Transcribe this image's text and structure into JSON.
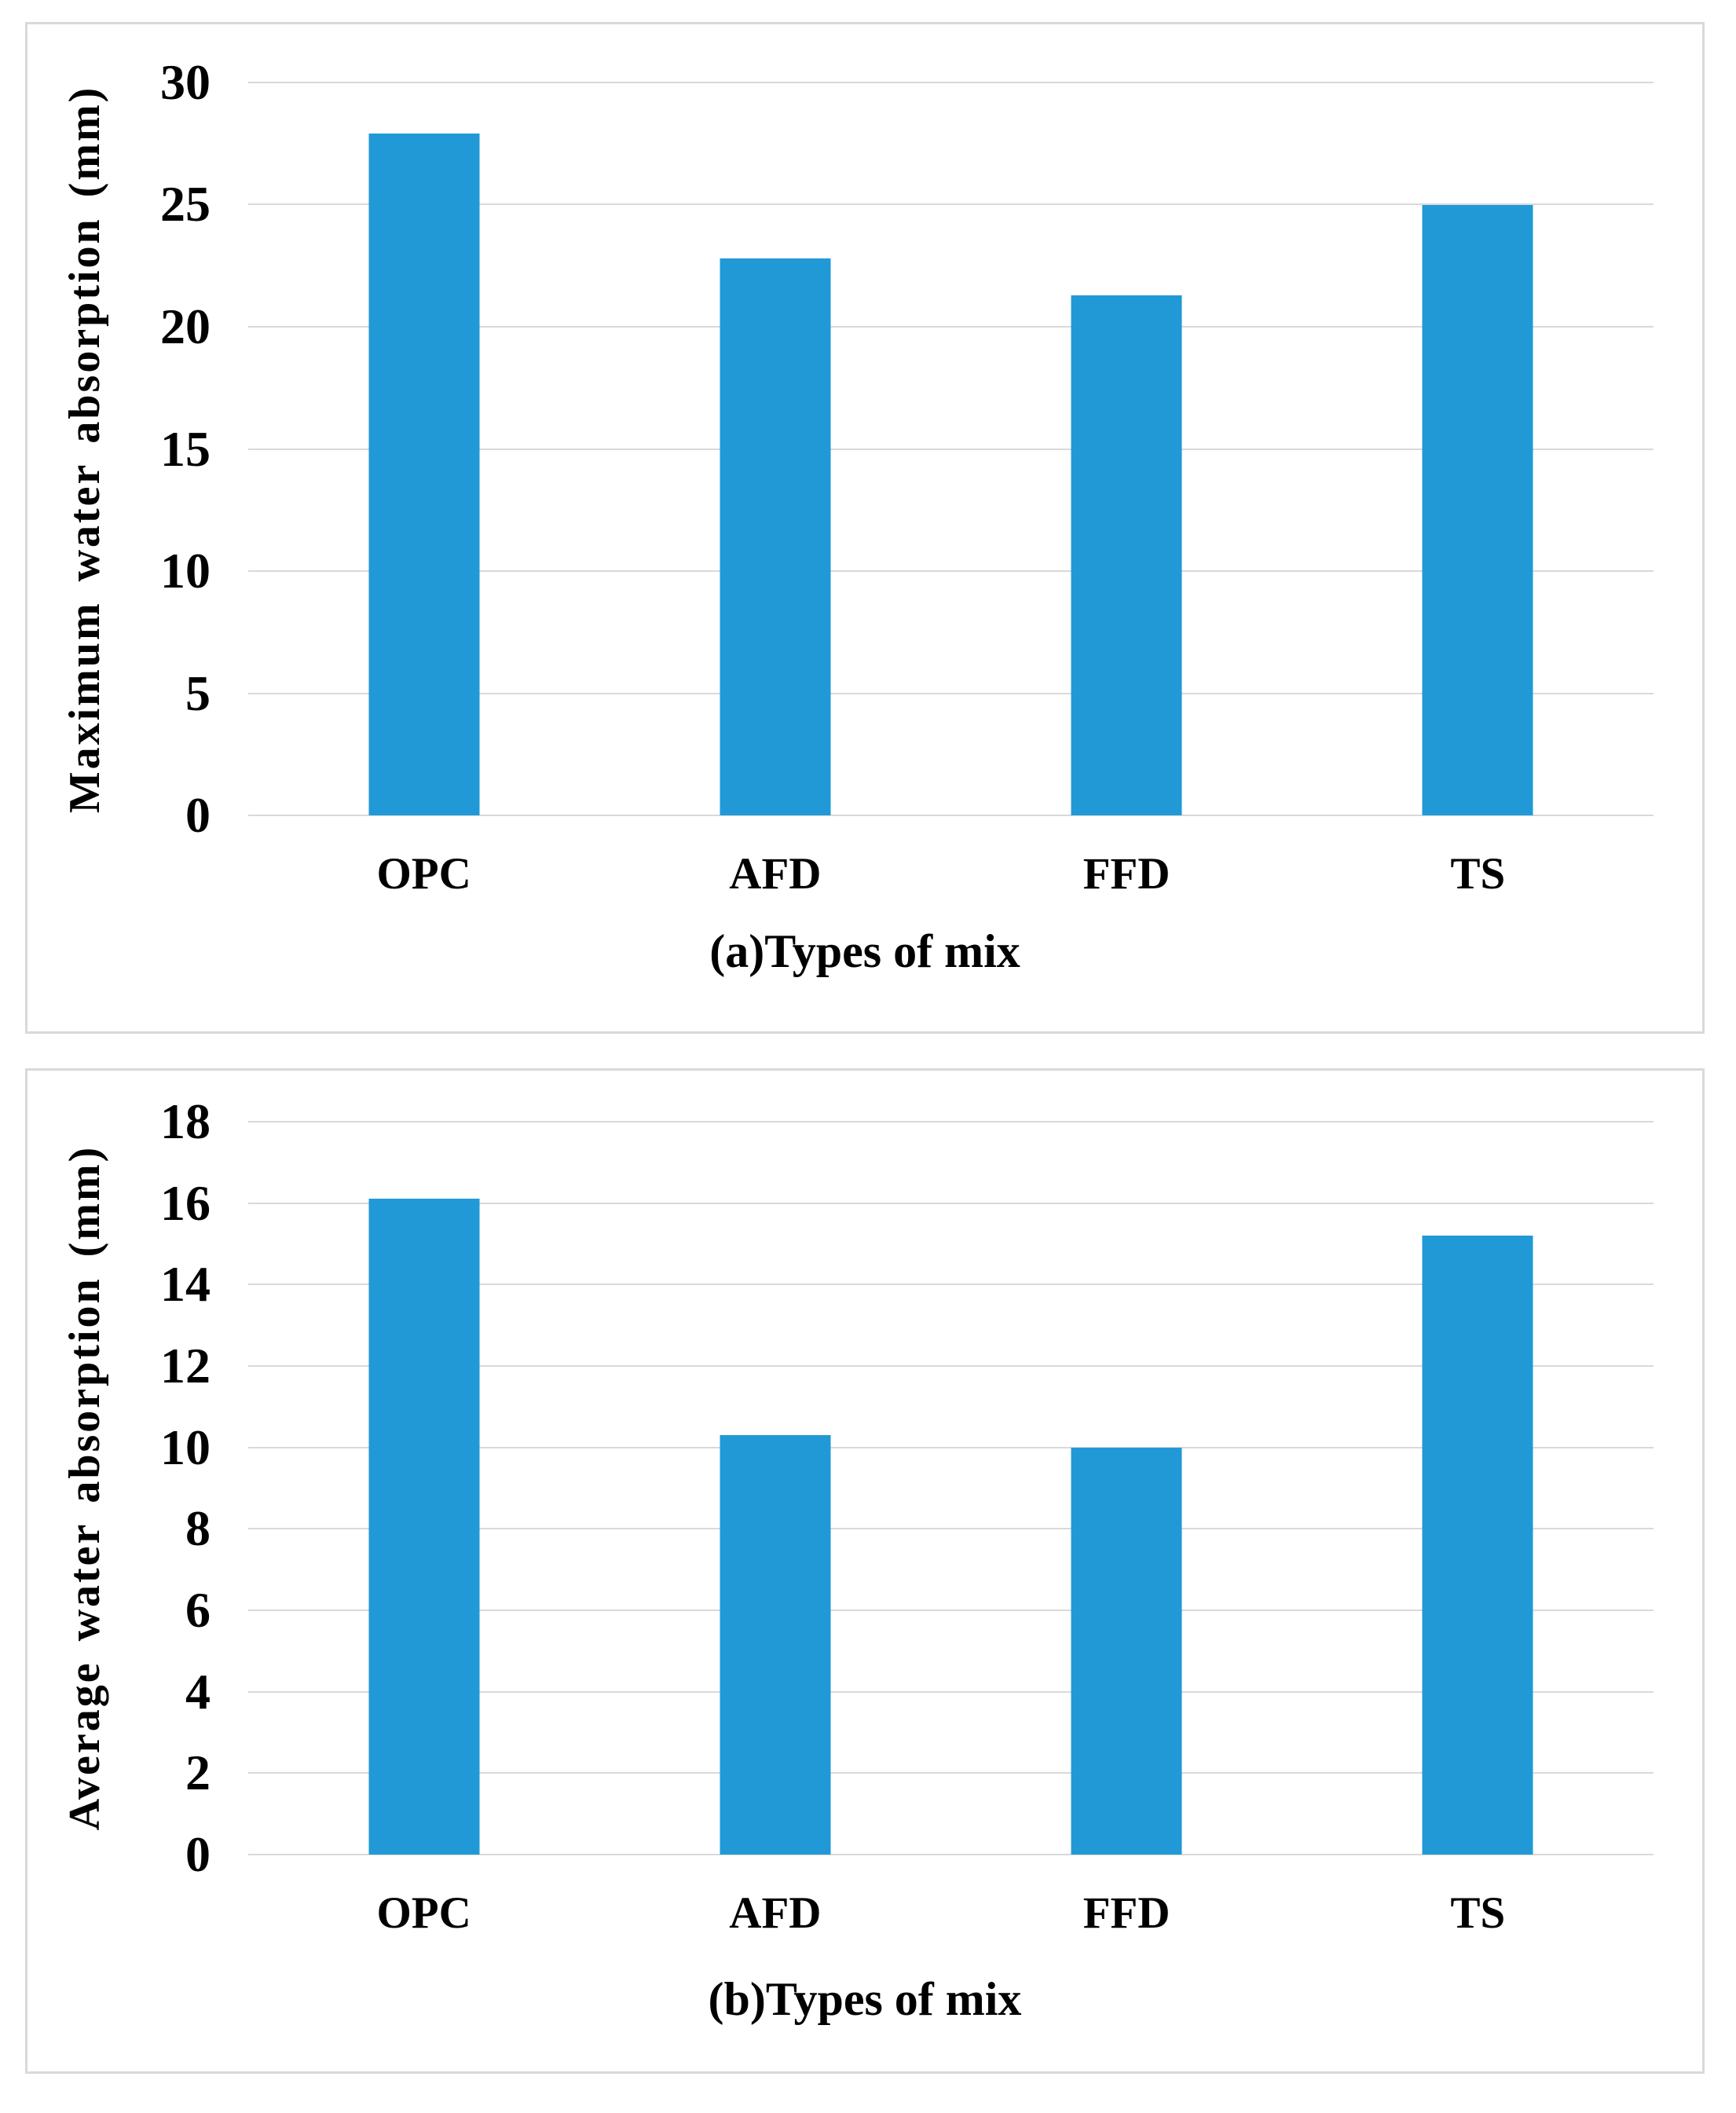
{
  "figure": {
    "background": "#ffffff",
    "border_color": "#d9d9d9",
    "gridline_color": "#d9d9d9",
    "bar_color": "#2199d6",
    "text_color": "#000000"
  },
  "chart_data": [
    {
      "type": "bar",
      "panel": "a",
      "caption": "(a)Types of mix",
      "ylabel": "Maximum water absorption (mm)",
      "xlabel": "Types of mix",
      "categories": [
        "OPC",
        "AFD",
        "FFD",
        "TS"
      ],
      "values": [
        27.9,
        22.8,
        21.3,
        25.0
      ],
      "ylim": [
        0,
        30
      ],
      "ytick_step": 5,
      "yticks": [
        0,
        5,
        10,
        15,
        20,
        25,
        30
      ],
      "grid": true,
      "legend_position": "none"
    },
    {
      "type": "bar",
      "panel": "b",
      "caption": "(b)Types of mix",
      "ylabel": "Average water absorption (mm)",
      "xlabel": "Types of mix",
      "categories": [
        "OPC",
        "AFD",
        "FFD",
        "TS"
      ],
      "values": [
        16.1,
        10.3,
        10.0,
        15.2
      ],
      "ylim": [
        0,
        18
      ],
      "ytick_step": 2,
      "yticks": [
        0,
        2,
        4,
        6,
        8,
        10,
        12,
        14,
        16,
        18
      ],
      "grid": true,
      "legend_position": "none"
    }
  ]
}
